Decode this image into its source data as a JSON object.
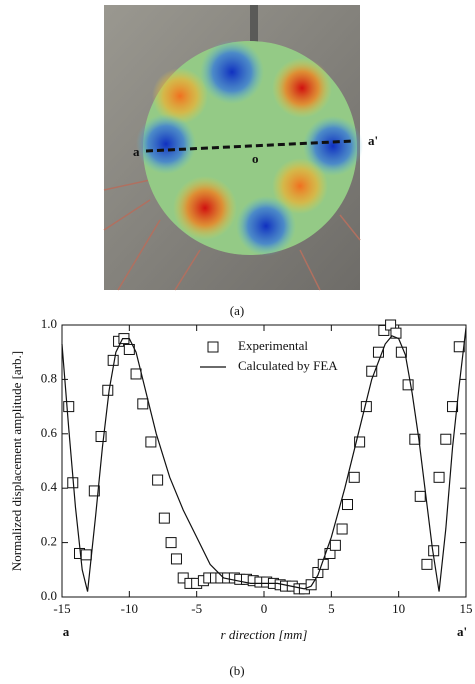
{
  "figure_a": {
    "label_a": "a",
    "label_a_prime": "a'",
    "label_o": "o",
    "caption": "(a)"
  },
  "chart_data": {
    "type": "line",
    "x_label": "r direction [mm]",
    "y_label": "Normalized displacement amplitude [arb.]",
    "x_end_left": "a",
    "x_end_right": "a'",
    "caption": "(b)",
    "xlim": [
      -15,
      15
    ],
    "ylim": [
      0,
      1
    ],
    "xticks": [
      -15,
      -10,
      -5,
      0,
      5,
      10,
      15
    ],
    "yticks": [
      {
        "value": 0,
        "label": "0.0"
      },
      0.2,
      0.4,
      0.6,
      0.8,
      {
        "value": 1,
        "label": "1.0"
      }
    ],
    "legend": "top-center",
    "series": [
      {
        "name": "Experimental",
        "style": "square-marker",
        "color": "#111111",
        "x": [
          -14.5,
          -14.2,
          -13.7,
          -13.2,
          -12.6,
          -12.1,
          -11.6,
          -11.2,
          -10.8,
          -10.4,
          -10.0,
          -9.5,
          -9.0,
          -8.4,
          -7.9,
          -7.4,
          -6.9,
          -6.5,
          -6.0,
          -5.5,
          -5.0,
          -4.5,
          -4.1,
          -3.6,
          -3.2,
          -2.7,
          -2.2,
          -1.8,
          -1.3,
          -0.8,
          -0.3,
          0.2,
          0.7,
          1.2,
          1.6,
          2.1,
          2.6,
          3.0,
          3.5,
          4.0,
          4.4,
          4.9,
          5.3,
          5.8,
          6.2,
          6.7,
          7.1,
          7.6,
          8.0,
          8.5,
          8.9,
          9.4,
          9.8,
          10.2,
          10.7,
          11.2,
          11.6,
          12.1,
          12.6,
          13.0,
          13.5,
          14.0,
          14.5
        ],
        "values": [
          0.7,
          0.42,
          0.16,
          0.155,
          0.39,
          0.59,
          0.76,
          0.87,
          0.94,
          0.95,
          0.91,
          0.82,
          0.71,
          0.57,
          0.43,
          0.29,
          0.2,
          0.14,
          0.07,
          0.05,
          0.05,
          0.06,
          0.07,
          0.07,
          0.07,
          0.07,
          0.07,
          0.065,
          0.065,
          0.06,
          0.055,
          0.055,
          0.05,
          0.045,
          0.04,
          0.04,
          0.03,
          0.03,
          0.045,
          0.09,
          0.12,
          0.16,
          0.19,
          0.25,
          0.34,
          0.44,
          0.57,
          0.7,
          0.83,
          0.9,
          0.98,
          1.0,
          0.97,
          0.9,
          0.78,
          0.58,
          0.37,
          0.12,
          0.17,
          0.44,
          0.58,
          0.7,
          0.92
        ]
      },
      {
        "name": "Calculated by FEA",
        "style": "line",
        "color": "#111111",
        "x": [
          -15,
          -14.5,
          -14,
          -13.5,
          -13.1,
          -12.5,
          -12,
          -11.5,
          -11,
          -10.5,
          -10,
          -9.5,
          -9,
          -8,
          -7,
          -6,
          -5,
          -4,
          -3,
          -2,
          -1,
          0,
          1,
          2,
          3,
          3.5,
          4,
          5,
          6,
          7,
          8,
          9,
          9.5,
          10,
          10.5,
          11,
          11.5,
          12,
          12.5,
          13,
          13.5,
          14,
          14.5,
          15
        ],
        "values": [
          0.93,
          0.62,
          0.33,
          0.1,
          0.02,
          0.3,
          0.55,
          0.76,
          0.9,
          0.95,
          0.95,
          0.9,
          0.8,
          0.6,
          0.44,
          0.32,
          0.22,
          0.12,
          0.07,
          0.06,
          0.05,
          0.05,
          0.05,
          0.04,
          0.03,
          0.04,
          0.08,
          0.22,
          0.4,
          0.6,
          0.8,
          0.93,
          0.96,
          0.95,
          0.89,
          0.75,
          0.58,
          0.38,
          0.18,
          0.02,
          0.25,
          0.55,
          0.78,
          0.99
        ]
      }
    ]
  }
}
